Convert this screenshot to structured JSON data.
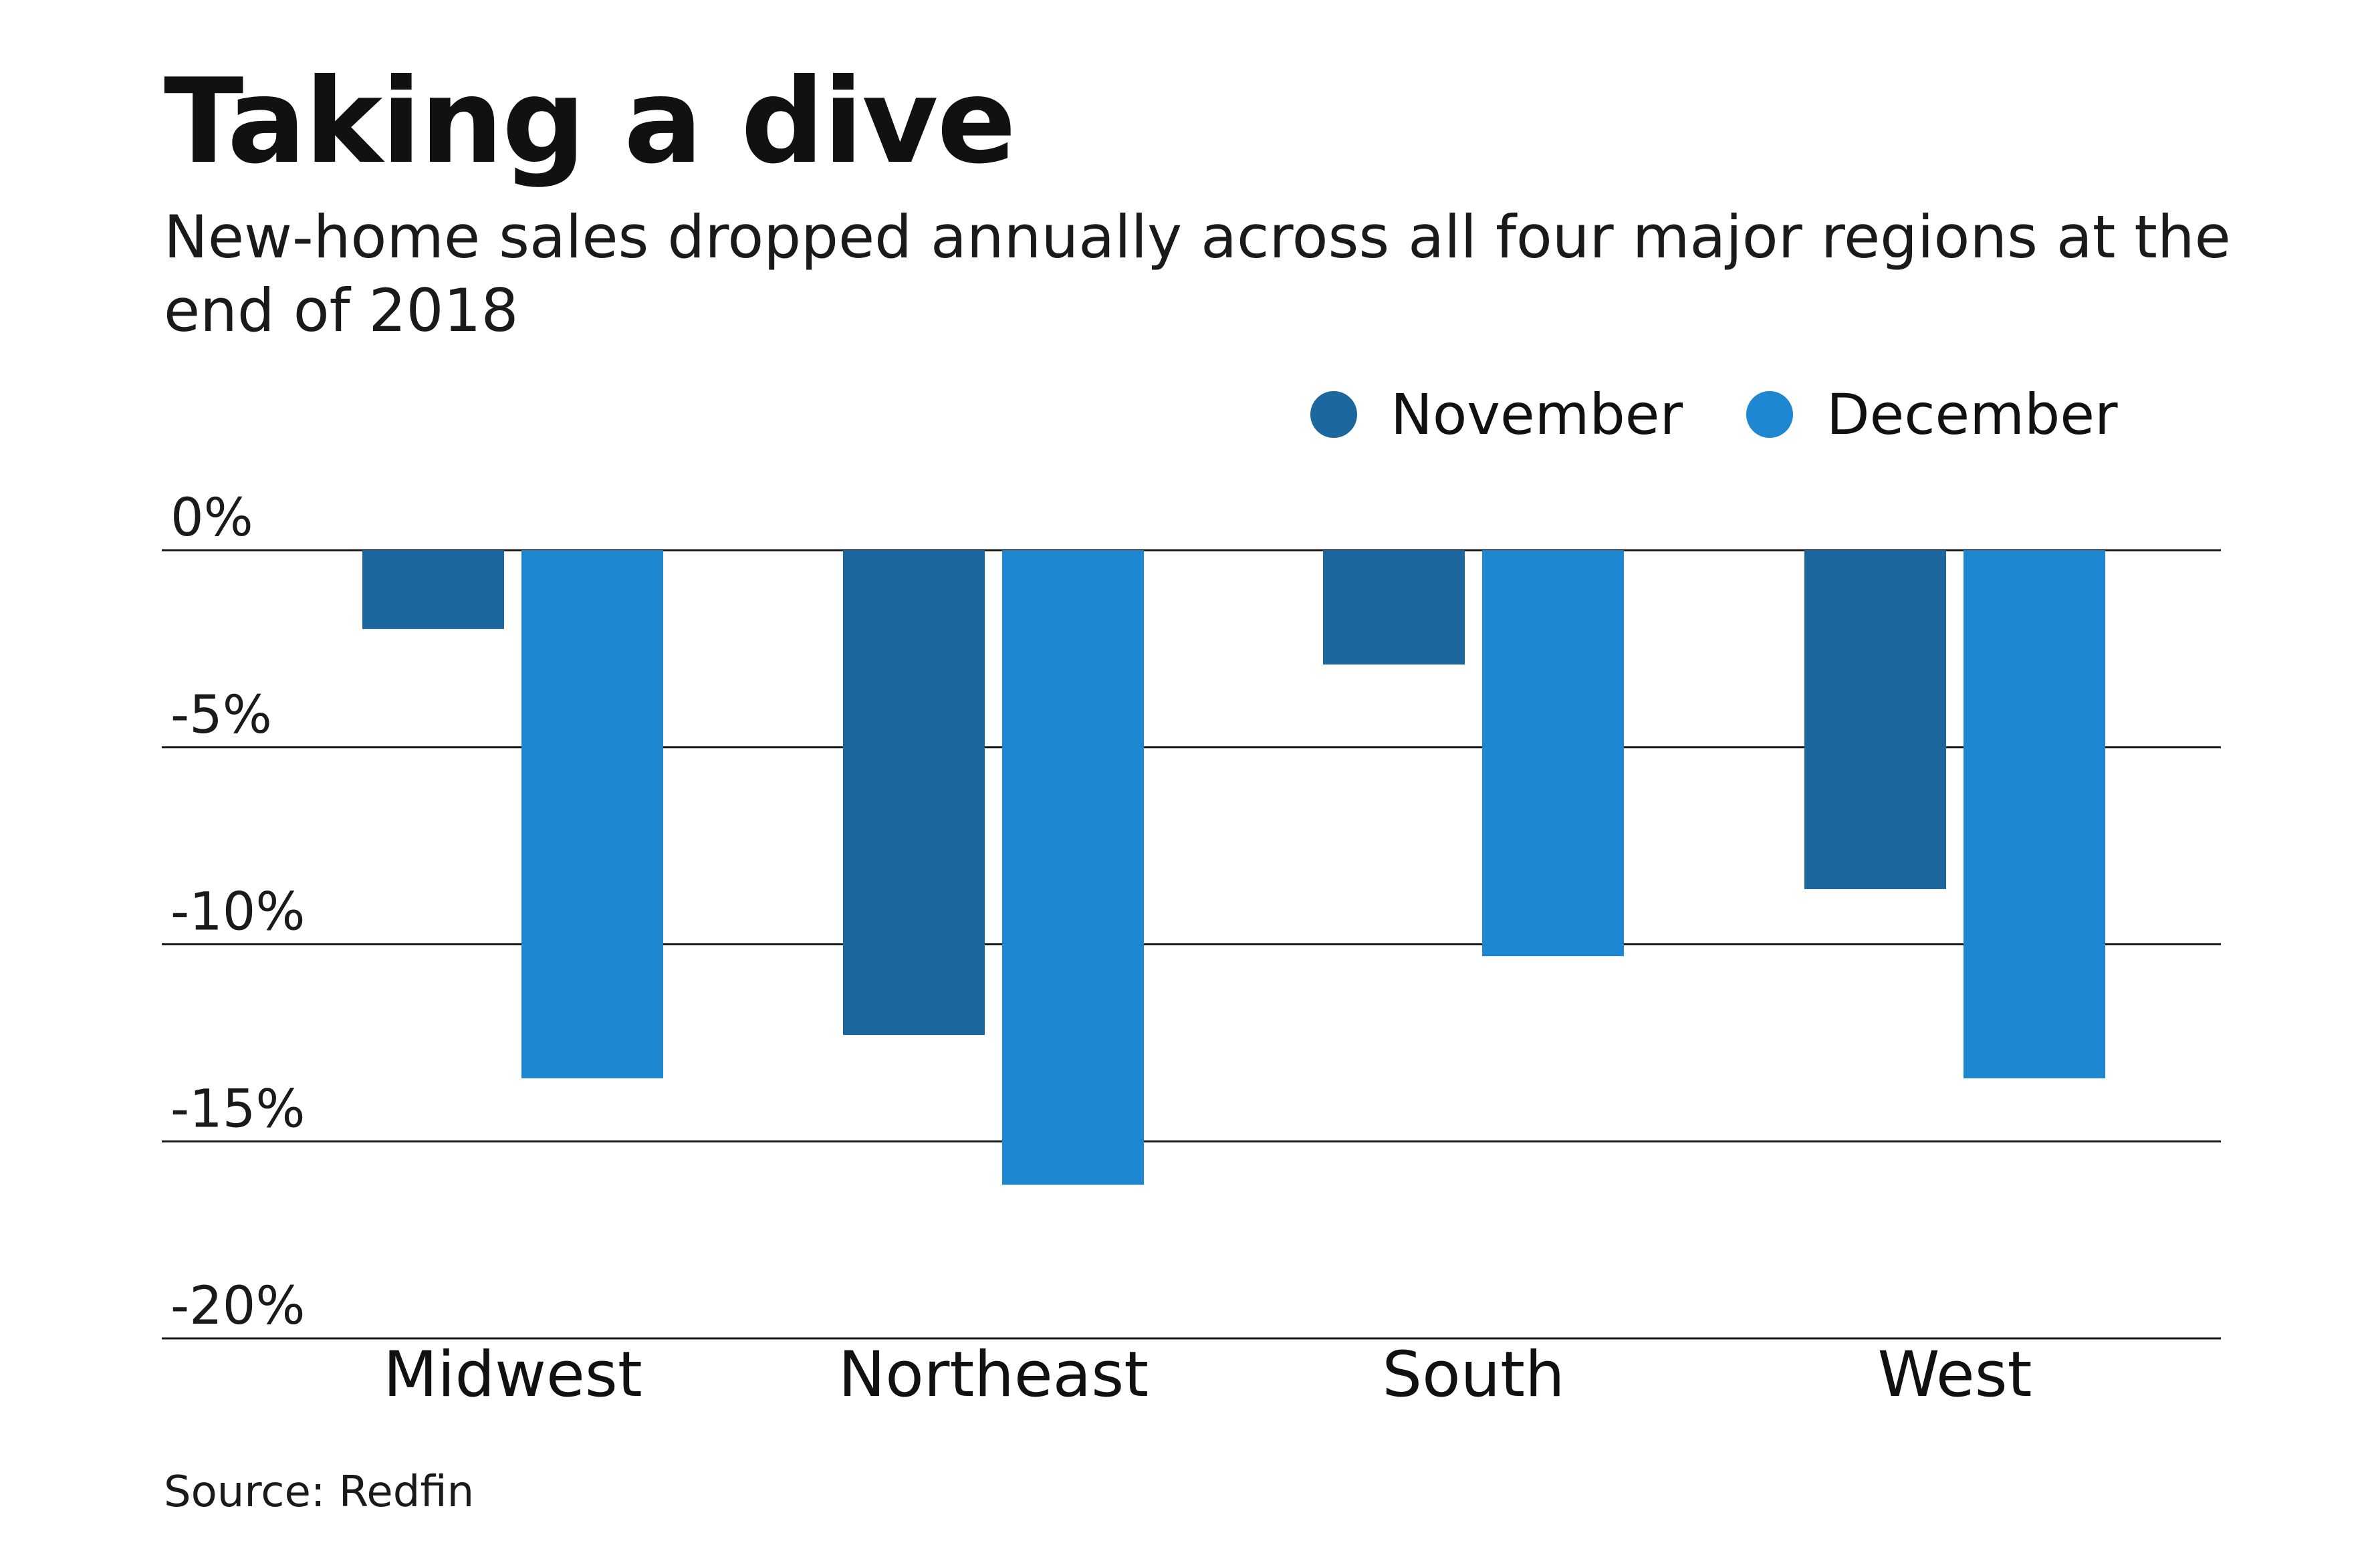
{
  "chart_data": {
    "type": "bar",
    "title": "Taking a dive",
    "subtitle": "New-home sales dropped annually across all four major regions at the end of 2018",
    "categories": [
      "Midwest",
      "Northeast",
      "South",
      "West"
    ],
    "series": [
      {
        "name": "November",
        "color": "#1c679e",
        "values": [
          -2.0,
          -12.3,
          -2.9,
          -8.6
        ]
      },
      {
        "name": "December",
        "color": "#1d87d2",
        "values": [
          -13.4,
          -16.1,
          -10.3,
          -13.4
        ]
      }
    ],
    "ylim": [
      -20,
      0
    ],
    "yticks": [
      0,
      -5,
      -10,
      -15,
      -20
    ],
    "ytick_labels": [
      "0%",
      "-5%",
      "-10%",
      "-15%",
      "-20%"
    ],
    "xlabel": "",
    "ylabel": "",
    "grid": true,
    "legend": "top-right",
    "source": "Source: Redfin"
  }
}
